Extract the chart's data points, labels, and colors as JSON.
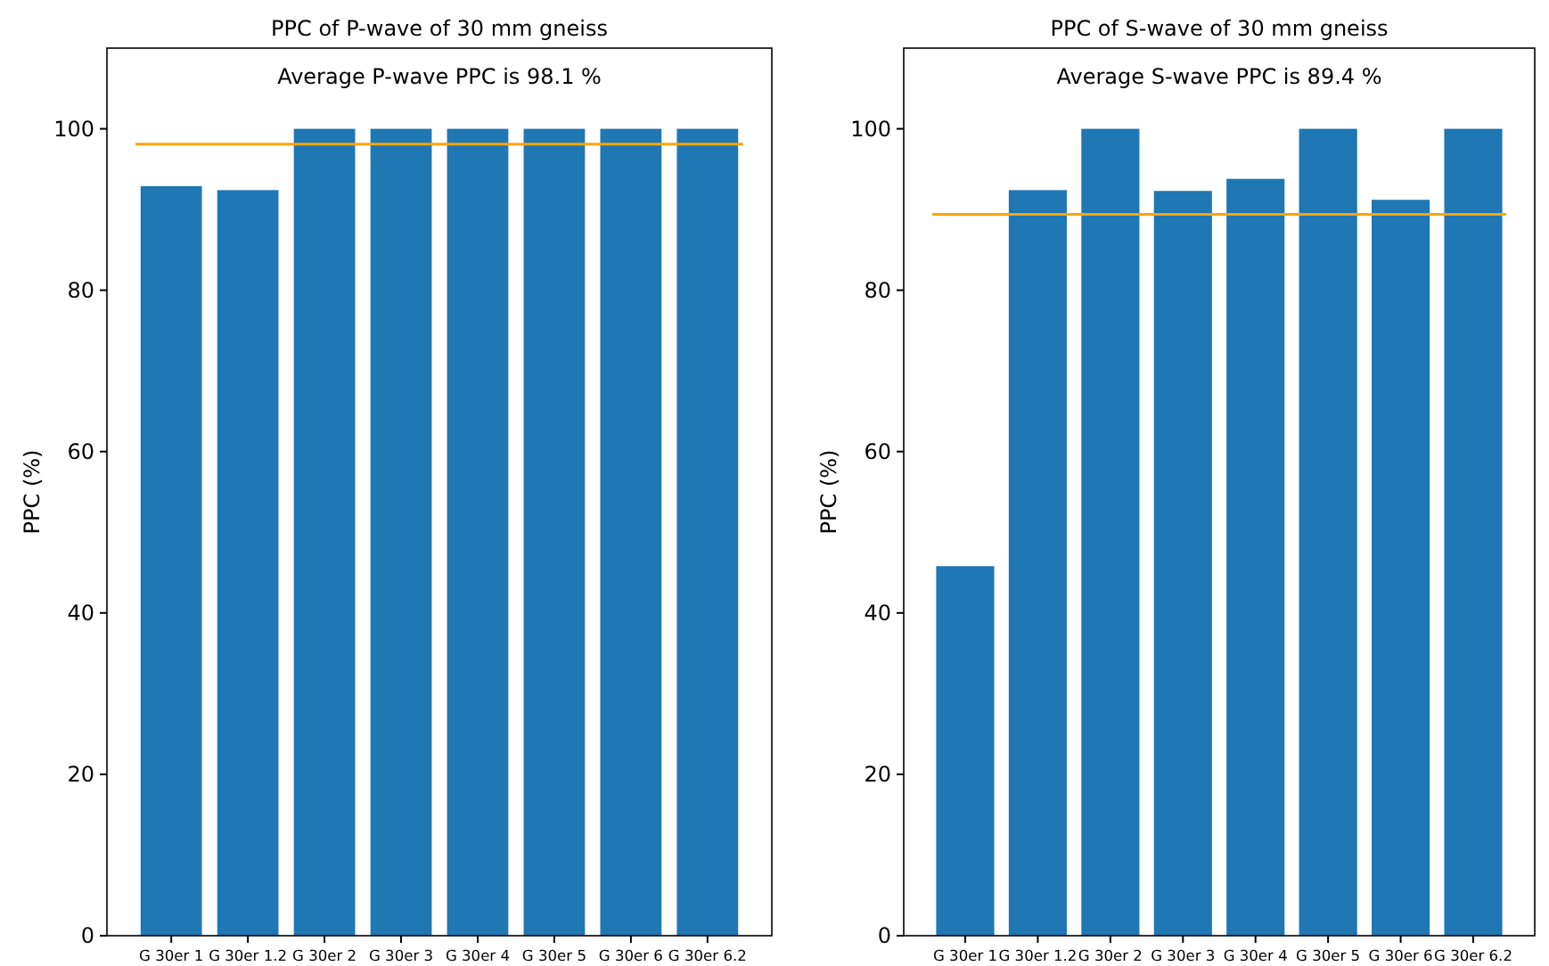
{
  "chart_data": [
    {
      "type": "bar",
      "title": "PPC of P-wave of 30 mm gneiss",
      "ylabel": "PPC (%)",
      "categories": [
        "G 30er 1",
        "G 30er 1.2",
        "G 30er 2",
        "G 30er 3",
        "G 30er 4",
        "G 30er 5",
        "G 30er 6",
        "G 30er 6.2"
      ],
      "values": [
        92.9,
        92.4,
        100,
        100,
        100,
        100,
        100,
        100
      ],
      "color": "#1f77b4",
      "ylim": [
        0,
        110
      ],
      "yticks": [
        0,
        20,
        40,
        60,
        80,
        100
      ],
      "grid": false,
      "annotations": [
        "Average P-wave PPC is 98.1 %"
      ],
      "ref_lines": [
        {
          "axis": "y",
          "value": 98.1,
          "color": "#ffa500"
        }
      ]
    },
    {
      "type": "bar",
      "title": "PPC of S-wave of 30 mm gneiss",
      "ylabel": "PPC (%)",
      "categories": [
        "G 30er 1",
        "G 30er 1.2",
        "G 30er 2",
        "G 30er 3",
        "G 30er 4",
        "G 30er 5",
        "G 30er 6",
        "G 30er 6.2"
      ],
      "values": [
        45.8,
        92.4,
        100,
        92.3,
        93.8,
        100,
        91.2,
        100
      ],
      "color": "#1f77b4",
      "ylim": [
        0,
        110
      ],
      "yticks": [
        0,
        20,
        40,
        60,
        80,
        100
      ],
      "grid": false,
      "annotations": [
        "Average S-wave PPC is 89.4 %"
      ],
      "ref_lines": [
        {
          "axis": "y",
          "value": 89.4,
          "color": "#ffa500"
        }
      ]
    }
  ]
}
